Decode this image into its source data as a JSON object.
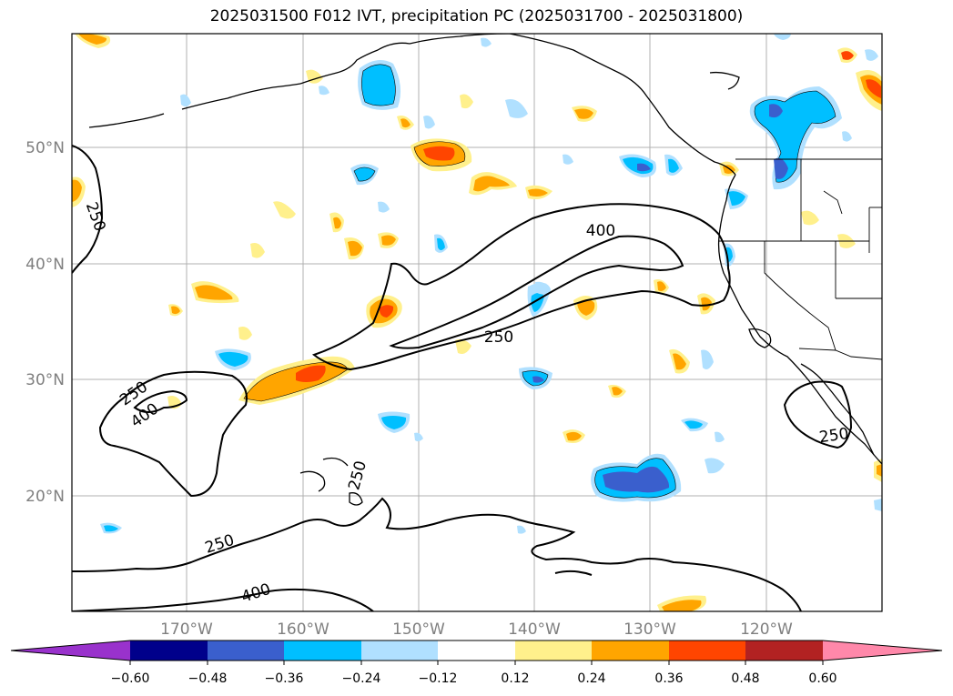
{
  "title": "2025031500 F012 IVT, precipitation PC (2025031700 - 2025031800)",
  "latitude_labels": [
    "50°N",
    "40°N",
    "30°N",
    "20°N"
  ],
  "longitude_labels": [
    "170°W",
    "160°W",
    "150°W",
    "140°W",
    "130°W",
    "120°W"
  ],
  "ivt_contour_levels": [
    "250",
    "400"
  ],
  "contour_labels": [
    "400",
    "250",
    "250",
    "250",
    "400",
    "250",
    "250",
    "400",
    "250"
  ],
  "colorbar": {
    "ticks": [
      "−0.60",
      "−0.48",
      "−0.36",
      "−0.24",
      "−0.12",
      "0.12",
      "0.24",
      "0.36",
      "0.48",
      "0.60"
    ],
    "colors": [
      "#9932cc",
      "#00008b",
      "#3a5fcd",
      "#00bfff",
      "#b0e0ff",
      "#ffffff",
      "#fff08c",
      "#ffa500",
      "#ff4500",
      "#b22222",
      "#ff88aa"
    ]
  },
  "colors": {
    "positive_light": "#fff08c",
    "positive_mid": "#ffa500",
    "positive_strong": "#ff4500",
    "negative_light": "#b0e0ff",
    "negative_mid": "#00bfff",
    "negative_strong": "#3a5fcd",
    "gridline": "#b0b0b0"
  }
}
